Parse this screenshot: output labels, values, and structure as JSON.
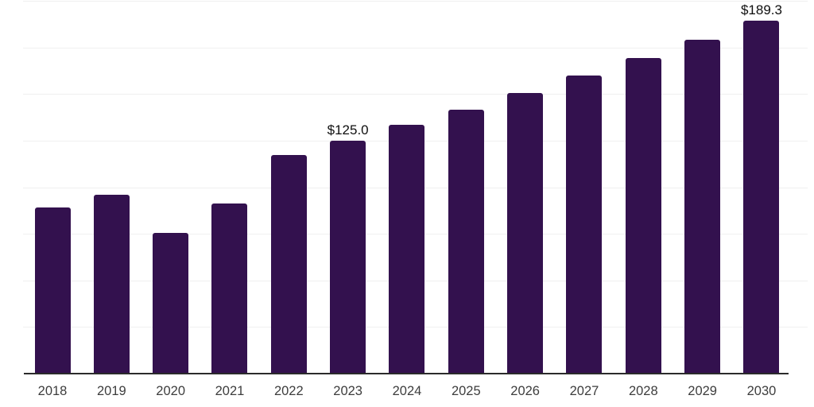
{
  "chart_data": {
    "type": "bar",
    "title": "",
    "xlabel": "",
    "ylabel": "",
    "categories": [
      "2018",
      "2019",
      "2020",
      "2021",
      "2022",
      "2023",
      "2024",
      "2025",
      "2026",
      "2027",
      "2028",
      "2029",
      "2030"
    ],
    "values": [
      89.3,
      95.9,
      75.6,
      91.2,
      117.2,
      125.0,
      133.4,
      141.4,
      150.4,
      159.9,
      169.4,
      179.3,
      189.3
    ],
    "data_labels": [
      {
        "category": "2023",
        "text": "$125.0"
      },
      {
        "category": "2030",
        "text": "$189.3"
      }
    ],
    "ylim": [
      0,
      200
    ],
    "gridline_step": 25,
    "grid": true,
    "y_tick_labels_visible": false,
    "legend": "none",
    "colors": {
      "bar": "#33114e",
      "background": "#ffffff",
      "gridline": "#f0f0f0",
      "axis_line": "#2b2b2b",
      "tick_label": "#3d3d3d",
      "data_label": "#0f0f0f"
    }
  }
}
